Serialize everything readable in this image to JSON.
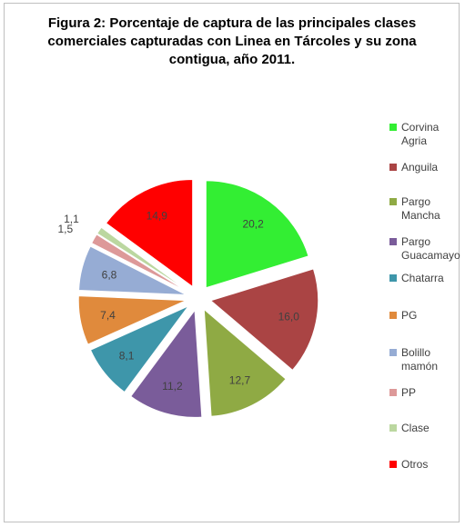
{
  "chart_data": {
    "type": "pie",
    "title": "Figura 2: Porcentaje de captura de las principales clases comerciales capturadas con Línea en Tárcoles y su zona contigua, año 2011.",
    "exploded": true,
    "legend_position": "right",
    "categories": [
      "Corvina Agria",
      "Anguila",
      "Pargo Mancha",
      "Pargo Guacamayo",
      "Chatarra",
      "PG",
      "Bolillo mamón",
      "PP",
      "Clase",
      "Otros"
    ],
    "values": [
      20.2,
      16.0,
      12.7,
      11.2,
      8.1,
      7.4,
      6.8,
      1.5,
      1.1,
      14.9
    ],
    "value_labels": [
      "20,2",
      "16,0",
      "12,7",
      "11,2",
      "8,1",
      "7,4",
      "6,8",
      "1,5",
      "1,1",
      "14,9"
    ],
    "colors": [
      "#33ee33",
      "#aa4444",
      "#8faa44",
      "#7a5c9a",
      "#3e96aa",
      "#e08a3c",
      "#96acd4",
      "#dd9999",
      "#bbd7a0",
      "#ff0000"
    ]
  },
  "legend": {
    "items": [
      {
        "lines": [
          "Corvina",
          "Agria"
        ]
      },
      {
        "lines": [
          "Anguila"
        ]
      },
      {
        "lines": [
          "Pargo",
          "Mancha"
        ]
      },
      {
        "lines": [
          "Pargo",
          "Guacamayo"
        ]
      },
      {
        "lines": [
          "Chatarra"
        ]
      },
      {
        "lines": [
          "PG"
        ]
      },
      {
        "lines": [
          "Bolillo",
          "mamón"
        ]
      },
      {
        "lines": [
          "PP"
        ]
      },
      {
        "lines": [
          "Clase"
        ]
      },
      {
        "lines": [
          "Otros"
        ]
      }
    ]
  },
  "title_lines": [
    "Figura 2: Porcentaje de captura de las principales clases",
    "comerciales capturadas con Linea en Tárcoles y su zona",
    "contigua, año 2011."
  ]
}
